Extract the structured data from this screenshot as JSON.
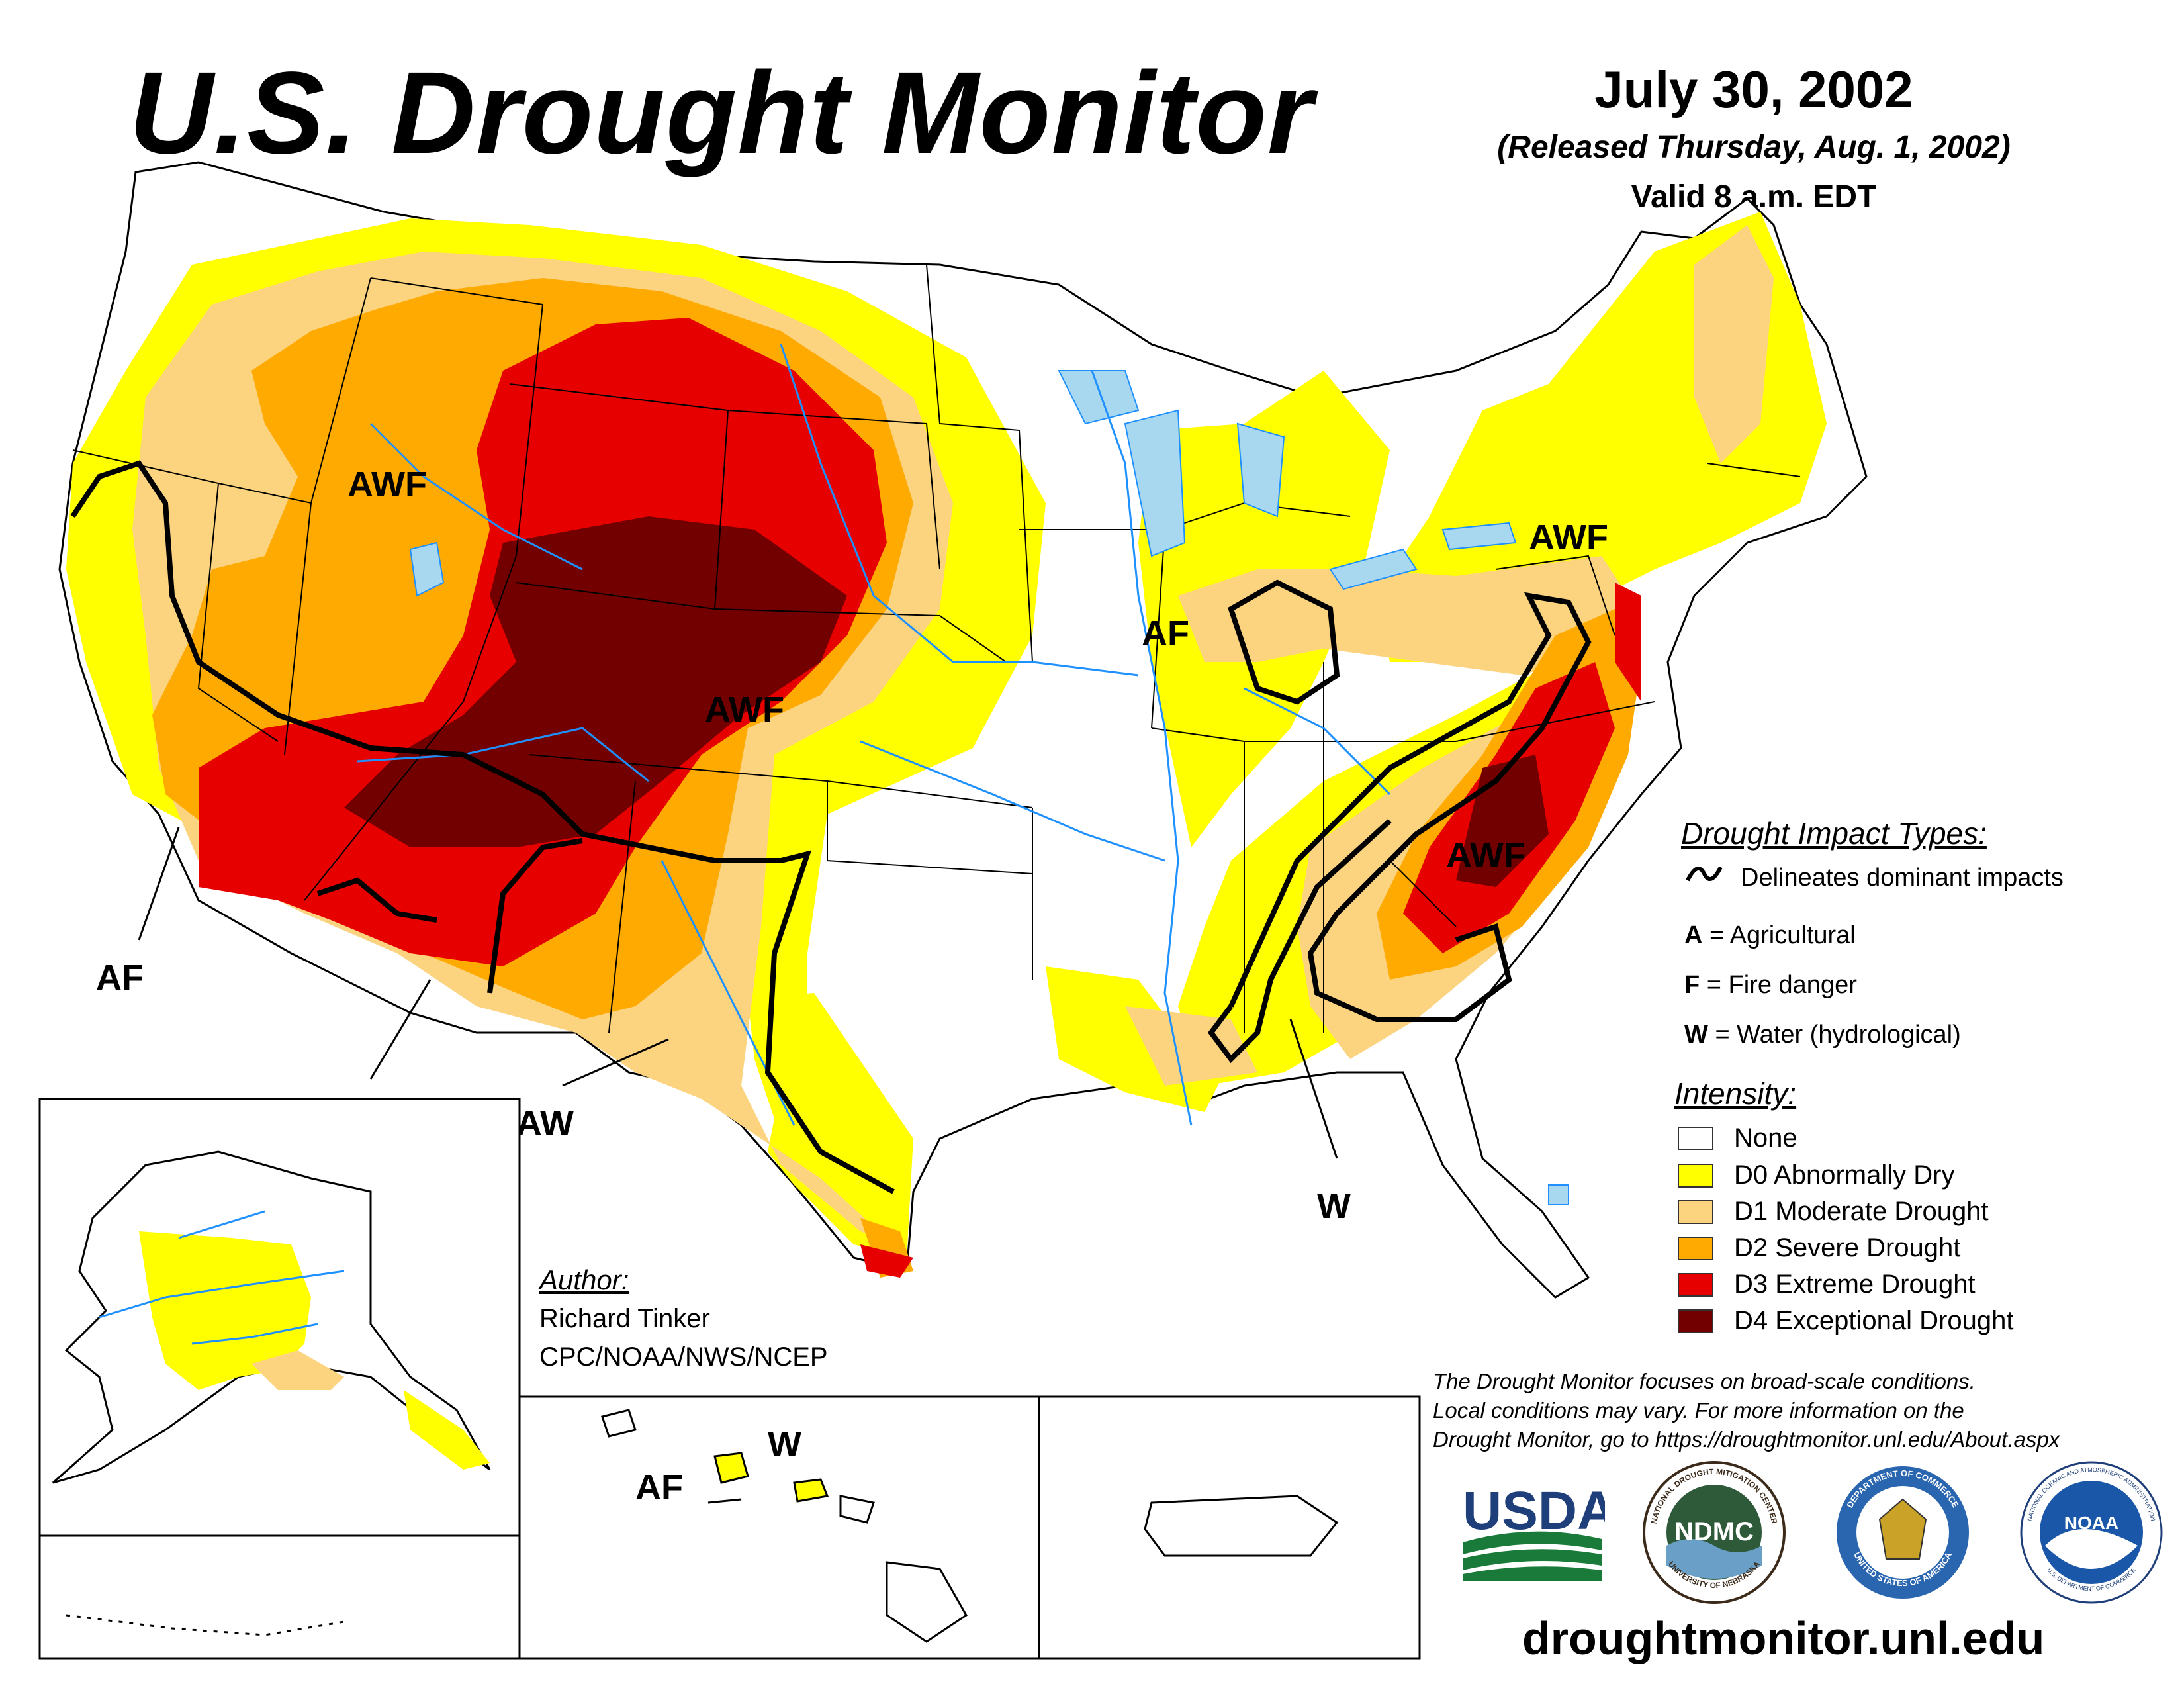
{
  "header": {
    "title": "U.S. Drought Monitor",
    "date": "July 30, 2002",
    "released": "(Released Thursday, Aug. 1, 2002)",
    "valid": "Valid 8 a.m. EDT"
  },
  "map_labels": {
    "awf_northwest": "AWF",
    "awf_central": "AWF",
    "awf_northeast": "AWF",
    "awf_southeast": "AWF",
    "af_california": "AF",
    "af_midwest": "AF",
    "aw_texas": "AW",
    "w_southeast": "W",
    "af_hawaii": "AF",
    "w_hawaii": "W"
  },
  "legend": {
    "impacts_title": "Drought Impact Types:",
    "delineates": "Delineates dominant impacts",
    "impacts": [
      {
        "code": "A",
        "label": "= Agricultural"
      },
      {
        "code": "F",
        "label": "= Fire danger"
      },
      {
        "code": "W",
        "label": "= Water (hydrological)"
      }
    ],
    "intensity_title": "Intensity:",
    "intensity": [
      {
        "label": "None",
        "color": "#ffffff"
      },
      {
        "label": "D0 Abnormally Dry",
        "color": "#ffff00"
      },
      {
        "label": "D1 Moderate Drought",
        "color": "#fcd37f"
      },
      {
        "label": "D2 Severe Drought",
        "color": "#ffaa00"
      },
      {
        "label": "D3 Extreme Drought",
        "color": "#e60000"
      },
      {
        "label": "D4 Exceptional Drought",
        "color": "#730000"
      }
    ]
  },
  "author": {
    "title": "Author:",
    "name": "Richard Tinker",
    "org": "CPC/NOAA/NWS/NCEP"
  },
  "footer": {
    "disclaimer_1": "The Drought Monitor focuses on broad-scale conditions.",
    "disclaimer_2": "Local conditions may vary. For more information on the",
    "disclaimer_3": "Drought Monitor, go to https://droughtmonitor.unl.edu/About.aspx",
    "website": "droughtmonitor.unl.edu"
  },
  "logos": {
    "usda": "USDA",
    "ndmc": "NDMC",
    "ndmc_ring_top": "NATIONAL DROUGHT MITIGATION CENTER",
    "ndmc_ring_bottom": "UNIVERSITY OF NEBRASKA",
    "commerce_ring_top": "DEPARTMENT OF COMMERCE",
    "commerce_ring_bottom": "UNITED STATES OF AMERICA",
    "noaa": "NOAA",
    "noaa_ring": "NATIONAL OCEANIC AND ATMOSPHERIC ADMINISTRATION",
    "noaa_ring_bottom": "U.S. DEPARTMENT OF COMMERCE"
  },
  "colors": {
    "d0": "#ffff00",
    "d1": "#fcd37f",
    "d2": "#ffaa00",
    "d3": "#e60000",
    "d4": "#730000",
    "water": "#1e90ff",
    "lake": "#a8d8f0"
  }
}
